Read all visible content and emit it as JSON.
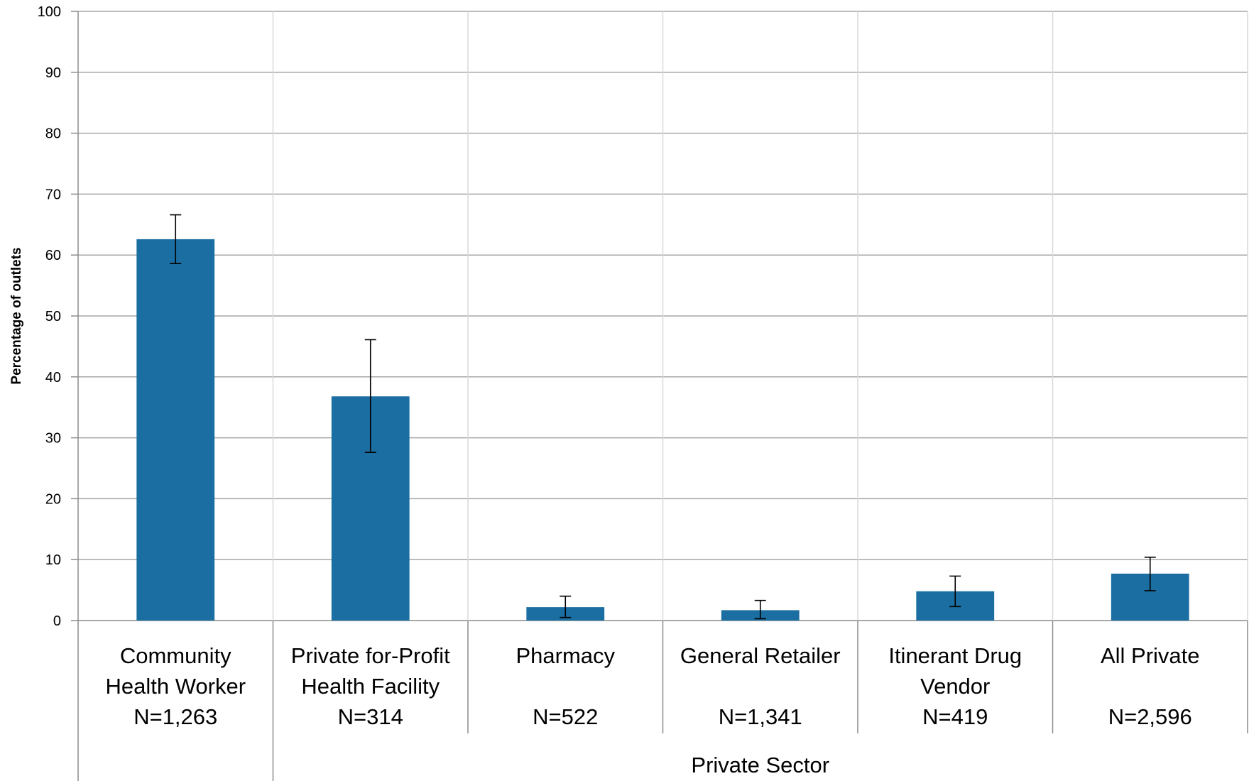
{
  "chart_data": {
    "type": "bar",
    "title": "",
    "xlabel": "",
    "ylabel": "Percentage of outlets",
    "ylim": [
      0,
      100
    ],
    "yticks": [
      0,
      10,
      20,
      30,
      40,
      50,
      60,
      70,
      80,
      90,
      100
    ],
    "grid": true,
    "bar_color": "#1a6ea1",
    "categories": [
      {
        "lines": [
          "Community",
          "Health Worker"
        ],
        "n": "N=1,263"
      },
      {
        "lines": [
          "Private for-Profit",
          "Health Facility"
        ],
        "n": "N=314"
      },
      {
        "lines": [
          "Pharmacy"
        ],
        "n": "N=522"
      },
      {
        "lines": [
          "General Retailer"
        ],
        "n": "N=1,341"
      },
      {
        "lines": [
          "Itinerant Drug",
          "Vendor"
        ],
        "n": "N=419"
      },
      {
        "lines": [
          "All Private"
        ],
        "n": "N=2,596"
      }
    ],
    "values": [
      62.6,
      36.8,
      2.2,
      1.7,
      4.8,
      7.7
    ],
    "error_low": [
      58.6,
      27.6,
      0.5,
      0.3,
      2.3,
      4.9
    ],
    "error_high": [
      66.6,
      46.1,
      4.0,
      3.3,
      7.3,
      10.4
    ],
    "groups": [
      {
        "label": "",
        "start": 0,
        "end": 0
      },
      {
        "label": "Private Sector",
        "start": 1,
        "end": 5
      }
    ]
  }
}
